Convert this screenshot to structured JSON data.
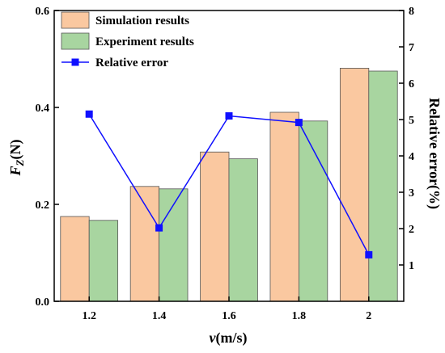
{
  "chart_data": {
    "type": "bar",
    "categories": [
      "1.2",
      "1.4",
      "1.6",
      "1.8",
      "2"
    ],
    "xlabel": {
      "main": "v",
      "unit": "(m/s)"
    },
    "ylabel_left": {
      "main": "F",
      "sub": "Z",
      "unit": "(N)"
    },
    "ylabel_right": "Relative error(%)",
    "ylim_left": [
      0,
      0.6
    ],
    "ylim_right": [
      0,
      8
    ],
    "yticks_left": [
      "0.0",
      "0.2",
      "0.4",
      "0.6"
    ],
    "yticks_right": [
      "1",
      "2",
      "3",
      "4",
      "5",
      "6",
      "7",
      "8"
    ],
    "series": [
      {
        "name": "Simulation results",
        "kind": "bar",
        "axis": "left",
        "color": "#FAC8A0",
        "values": [
          0.175,
          0.237,
          0.308,
          0.39,
          0.481
        ]
      },
      {
        "name": "Experiment results",
        "kind": "bar",
        "axis": "left",
        "color": "#A8D5A0",
        "values": [
          0.167,
          0.232,
          0.294,
          0.372,
          0.475
        ]
      },
      {
        "name": "Relative error",
        "kind": "line",
        "axis": "right",
        "color": "#1010FF",
        "values": [
          5.15,
          2.02,
          5.1,
          4.92,
          1.28
        ]
      }
    ],
    "legend_position": "top-left",
    "grid": false
  }
}
